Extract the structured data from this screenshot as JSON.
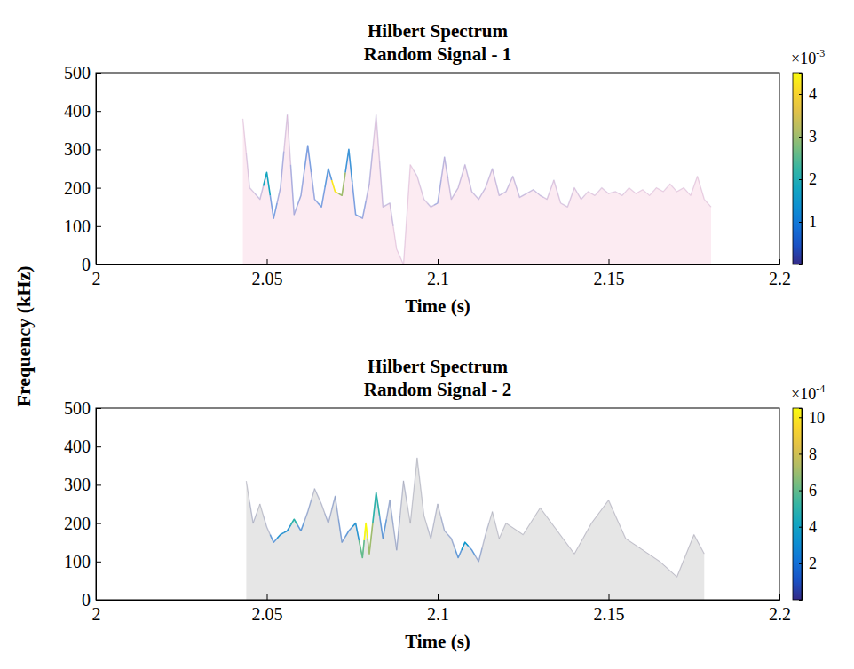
{
  "chart_data": [
    {
      "type": "line",
      "title": "Hilbert Spectrum",
      "subtitle": "Random Signal - 1",
      "xlabel": "Time (s)",
      "ylabel": "Frequency (kHz)",
      "xlim": [
        2,
        2.2
      ],
      "xticks": [
        2,
        2.05,
        2.1,
        2.15,
        2.2
      ],
      "ylim": [
        0,
        500
      ],
      "yticks": [
        0,
        100,
        200,
        300,
        400,
        500
      ],
      "grid": false,
      "x": [
        2.043,
        2.045,
        2.048,
        2.05,
        2.052,
        2.054,
        2.056,
        2.058,
        2.06,
        2.062,
        2.064,
        2.066,
        2.068,
        2.07,
        2.072,
        2.074,
        2.076,
        2.078,
        2.08,
        2.082,
        2.084,
        2.086,
        2.088,
        2.09,
        2.092,
        2.094,
        2.096,
        2.098,
        2.1,
        2.102,
        2.104,
        2.106,
        2.108,
        2.11,
        2.112,
        2.114,
        2.116,
        2.118,
        2.12,
        2.122,
        2.124,
        2.126,
        2.128,
        2.13,
        2.132,
        2.134,
        2.136,
        2.138,
        2.14,
        2.142,
        2.144,
        2.146,
        2.148,
        2.15,
        2.152,
        2.154,
        2.156,
        2.158,
        2.16,
        2.162,
        2.164,
        2.166,
        2.168,
        2.17,
        2.172,
        2.174,
        2.176,
        2.178,
        2.18
      ],
      "series": [
        {
          "color": "#f2a3c6",
          "values": [
            380,
            200,
            170,
            240,
            120,
            200,
            390,
            130,
            180,
            310,
            170,
            150,
            250,
            190,
            180,
            300,
            130,
            120,
            210,
            390,
            150,
            160,
            40,
            0,
            260,
            230,
            170,
            150,
            160,
            280,
            170,
            200,
            260,
            190,
            170,
            200,
            250,
            180,
            190,
            230,
            175,
            185,
            195,
            180,
            170,
            220,
            160,
            150,
            200,
            170,
            190,
            180,
            200,
            185,
            190,
            180,
            200,
            185,
            195,
            180,
            200,
            190,
            210,
            190,
            200,
            180,
            230,
            170,
            150
          ],
          "amplitudes": [
            0.1,
            0.2,
            0.3,
            1.8,
            0.8,
            0.5,
            0.2,
            0.5,
            0.6,
            0.8,
            0.6,
            0.8,
            1.0,
            4.3,
            3.0,
            1.2,
            0.8,
            0.6,
            0.4,
            0.2,
            0.3,
            0.3,
            0.1,
            0.1,
            0.1,
            0.2,
            0.2,
            0.3,
            0.5,
            0.4,
            0.3,
            0.3,
            0.3,
            0.3,
            0.3,
            0.3,
            0.3,
            0.3,
            0.3,
            0.3,
            0.3,
            0.3,
            0.3,
            0.3,
            0.2,
            0.2,
            0.2,
            0.2,
            0.2,
            0.2,
            0.15,
            0.15,
            0.15,
            0.15,
            0.15,
            0.15,
            0.1,
            0.1,
            0.1,
            0.1,
            0.1,
            0.1,
            0.1,
            0.1,
            0.1,
            0.1,
            0.05,
            0.05,
            0.05
          ]
        }
      ],
      "colorbar": {
        "lim": [
          0,
          4.5
        ],
        "ticks": [
          1,
          2,
          3,
          4
        ],
        "scale_label": "×10",
        "exponent": -3
      }
    },
    {
      "type": "line",
      "title": "Hilbert Spectrum",
      "subtitle": "Random Signal - 2",
      "xlabel": "Time (s)",
      "xlim": [
        2,
        2.2
      ],
      "xticks": [
        2,
        2.05,
        2.1,
        2.15,
        2.2
      ],
      "ylim": [
        0,
        500
      ],
      "yticks": [
        0,
        100,
        200,
        300,
        400,
        500
      ],
      "grid": false,
      "x": [
        2.044,
        2.046,
        2.048,
        2.05,
        2.052,
        2.054,
        2.056,
        2.058,
        2.06,
        2.062,
        2.064,
        2.066,
        2.068,
        2.07,
        2.072,
        2.074,
        2.076,
        2.078,
        2.079,
        2.08,
        2.082,
        2.084,
        2.086,
        2.088,
        2.09,
        2.092,
        2.094,
        2.096,
        2.098,
        2.1,
        2.102,
        2.104,
        2.106,
        2.108,
        2.11,
        2.112,
        2.114,
        2.116,
        2.118,
        2.12,
        2.125,
        2.13,
        2.135,
        2.14,
        2.145,
        2.15,
        2.155,
        2.16,
        2.165,
        2.17,
        2.175,
        2.178
      ],
      "series": [
        {
          "color": "#8c8c8c",
          "values": [
            310,
            200,
            250,
            190,
            150,
            170,
            180,
            210,
            180,
            230,
            290,
            250,
            200,
            270,
            150,
            180,
            200,
            110,
            200,
            120,
            280,
            160,
            260,
            130,
            310,
            200,
            370,
            220,
            160,
            250,
            180,
            160,
            110,
            150,
            130,
            100,
            170,
            230,
            160,
            200,
            170,
            240,
            180,
            120,
            200,
            260,
            160,
            130,
            100,
            60,
            170,
            120
          ],
          "amplitudes": [
            0.2,
            0.5,
            0.3,
            0.5,
            2.0,
            3.0,
            3.0,
            5.0,
            2.0,
            1.0,
            0.5,
            0.5,
            0.8,
            1.0,
            1.5,
            2.0,
            3.0,
            6.0,
            10.5,
            7.0,
            5.0,
            2.0,
            1.0,
            0.8,
            0.5,
            0.3,
            0.3,
            0.3,
            0.5,
            0.5,
            0.8,
            1.0,
            2.0,
            3.5,
            2.0,
            1.0,
            0.5,
            0.3,
            0.2,
            0.2,
            0.1,
            0.1,
            0.1,
            0.05,
            0.05,
            0.05,
            0.05,
            0.05,
            0.05,
            0.05,
            0.05,
            0.05
          ]
        }
      ],
      "colorbar": {
        "lim": [
          0,
          10.5
        ],
        "ticks": [
          2,
          4,
          6,
          8,
          10
        ],
        "scale_label": "×10",
        "exponent": -4
      }
    }
  ]
}
